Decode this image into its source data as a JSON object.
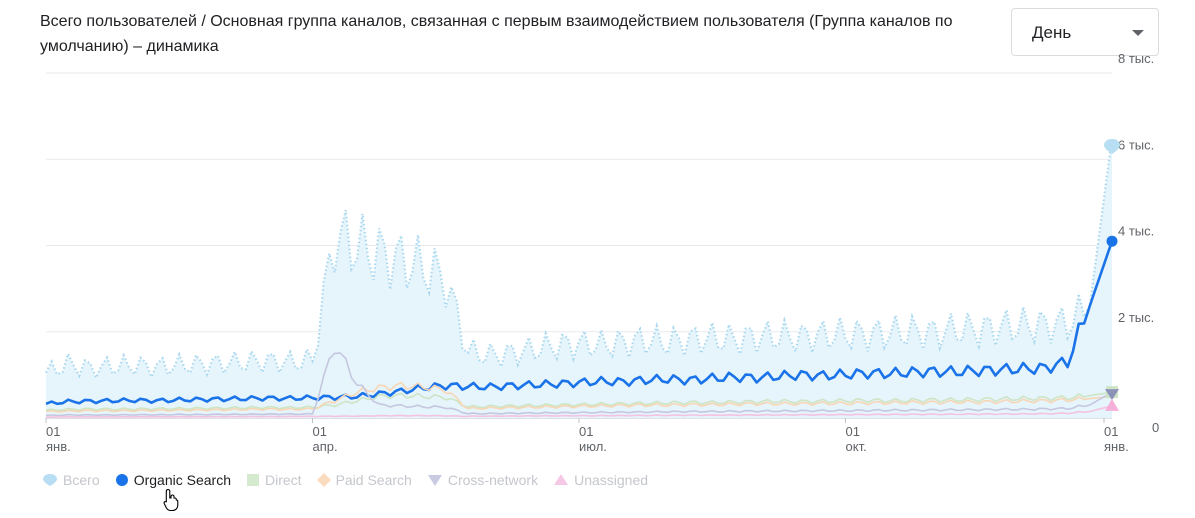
{
  "title": "Всего пользователей / Основная группа каналов, связанная с первым взаимодействием пользователя (Группа каналов по умолчанию) – динамика",
  "period_select": {
    "value": "День"
  },
  "chart_data": {
    "type": "line",
    "x_ticks": [
      {
        "day": "01",
        "month": "янв."
      },
      {
        "day": "01",
        "month": "апр."
      },
      {
        "day": "01",
        "month": "июл."
      },
      {
        "day": "01",
        "month": "окт."
      },
      {
        "day": "01",
        "month": "янв."
      }
    ],
    "y_ticks": [
      "0",
      "2 тыс.",
      "4 тыс.",
      "6 тыс.",
      "8 тыс."
    ],
    "ylim": [
      0,
      8000
    ],
    "grid": true,
    "legend_position": "bottom-left",
    "series": [
      {
        "name": "Всего",
        "color": "#a8d8f0",
        "style": "dotted-area",
        "active": false,
        "values": [
          1050,
          1250,
          1150,
          1200,
          1220,
          1180,
          1230,
          1250,
          1270,
          1300,
          1320,
          1290,
          1350,
          4200,
          4000,
          3800,
          3650,
          3500,
          3200,
          1550,
          1450,
          1500,
          1600,
          1680,
          1720,
          1700,
          1750,
          1800,
          1760,
          1820,
          1850,
          1820,
          1880,
          1900,
          1870,
          1920,
          1950,
          1930,
          1980,
          2000,
          1970,
          2050,
          2050,
          2100,
          2150,
          2150,
          2200,
          2600,
          6500
        ]
      },
      {
        "name": "Organic Search",
        "color": "#1a73e8",
        "style": "line",
        "active": true,
        "values": [
          330,
          380,
          390,
          400,
          410,
          400,
          420,
          430,
          440,
          450,
          460,
          455,
          470,
          480,
          500,
          560,
          620,
          700,
          750,
          730,
          720,
          750,
          770,
          790,
          820,
          850,
          840,
          880,
          900,
          880,
          920,
          950,
          930,
          970,
          1000,
          980,
          1010,
          1040,
          1030,
          1060,
          1080,
          1070,
          1100,
          1120,
          1140,
          1160,
          1300,
          2600,
          4100
        ]
      },
      {
        "name": "Direct",
        "color": "#cde5c5",
        "style": "line",
        "active": false,
        "values": [
          180,
          200,
          210,
          205,
          210,
          215,
          220,
          225,
          230,
          240,
          245,
          240,
          250,
          300,
          400,
          500,
          520,
          500,
          480,
          260,
          270,
          280,
          290,
          300,
          310,
          320,
          330,
          340,
          350,
          360,
          360,
          370,
          380,
          390,
          380,
          390,
          400,
          410,
          400,
          410,
          420,
          420,
          430,
          440,
          450,
          460,
          470,
          520,
          600
        ]
      },
      {
        "name": "Paid Search",
        "color": "#f7d6b5",
        "style": "line",
        "active": false,
        "values": [
          150,
          160,
          170,
          165,
          170,
          175,
          180,
          185,
          190,
          200,
          205,
          200,
          210,
          400,
          600,
          700,
          750,
          720,
          650,
          220,
          230,
          240,
          250,
          260,
          270,
          280,
          290,
          300,
          300,
          310,
          310,
          320,
          330,
          330,
          330,
          340,
          340,
          350,
          350,
          360,
          360,
          370,
          370,
          380,
          390,
          400,
          420,
          450,
          500
        ]
      },
      {
        "name": "Cross-network",
        "color": "#c5c7e0",
        "style": "line",
        "active": false,
        "values": [
          60,
          70,
          70,
          70,
          75,
          75,
          80,
          80,
          85,
          85,
          90,
          90,
          95,
          1700,
          800,
          300,
          280,
          260,
          250,
          100,
          105,
          110,
          115,
          120,
          125,
          130,
          135,
          140,
          145,
          150,
          150,
          155,
          160,
          160,
          165,
          170,
          170,
          175,
          180,
          180,
          185,
          190,
          190,
          200,
          200,
          210,
          220,
          300,
          600
        ]
      },
      {
        "name": "Unassigned",
        "color": "#f4c2e2",
        "style": "line",
        "active": false,
        "values": [
          20,
          25,
          25,
          25,
          28,
          28,
          30,
          30,
          32,
          32,
          35,
          35,
          38,
          40,
          45,
          50,
          55,
          55,
          50,
          40,
          42,
          45,
          48,
          50,
          52,
          55,
          58,
          60,
          62,
          65,
          65,
          68,
          70,
          72,
          74,
          76,
          78,
          80,
          82,
          84,
          86,
          88,
          90,
          92,
          95,
          100,
          110,
          150,
          280
        ]
      }
    ]
  },
  "legend": [
    {
      "name": "Всего",
      "icon": "marker-pin-icon"
    },
    {
      "name": "Organic Search",
      "icon": "circle-icon"
    },
    {
      "name": "Direct",
      "icon": "square-icon"
    },
    {
      "name": "Paid Search",
      "icon": "diamond-icon"
    },
    {
      "name": "Cross-network",
      "icon": "triangle-down-icon"
    },
    {
      "name": "Unassigned",
      "icon": "triangle-up-icon"
    }
  ]
}
